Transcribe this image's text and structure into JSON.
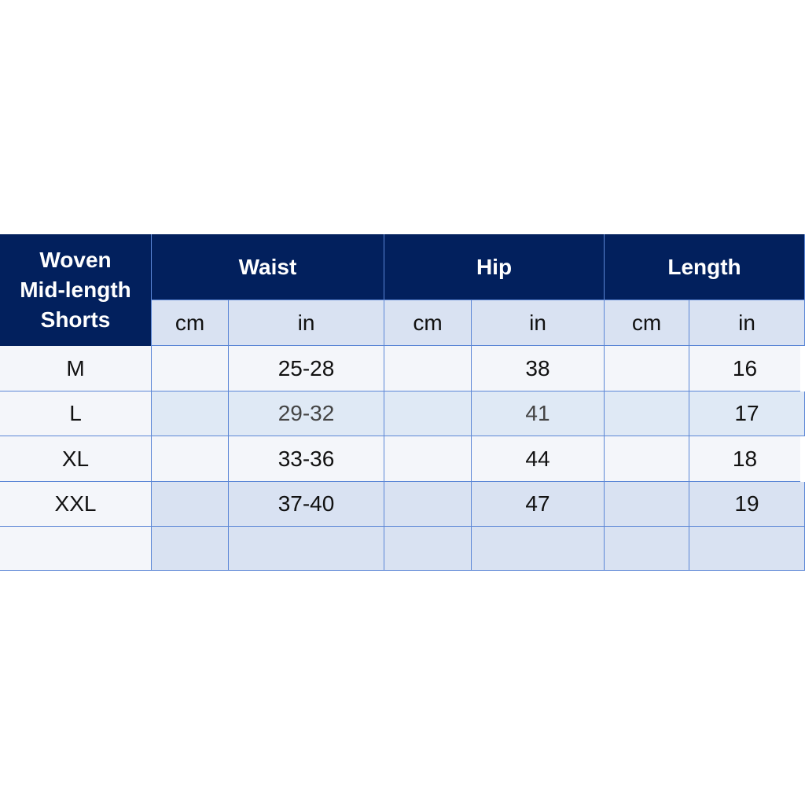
{
  "title": "Woven\nMid-length\nShorts",
  "groups": [
    "Waist",
    "Hip",
    "Length"
  ],
  "units": [
    "cm",
    "in",
    "cm",
    "in",
    "cm",
    "in"
  ],
  "rows": [
    {
      "size": "M",
      "values": [
        "",
        "25-28",
        "",
        "38",
        "",
        "16"
      ]
    },
    {
      "size": "L",
      "values": [
        "",
        "29-32",
        "",
        "41",
        "",
        "17"
      ]
    },
    {
      "size": "XL",
      "values": [
        "",
        "33-36",
        "",
        "44",
        "",
        "18"
      ]
    },
    {
      "size": "XXL",
      "values": [
        "",
        "37-40",
        "",
        "47",
        "",
        "19"
      ]
    },
    {
      "size": "",
      "values": [
        "",
        "",
        "",
        "",
        "",
        ""
      ]
    }
  ],
  "colors": {
    "header": "#02205d",
    "grid": "#5b86d6",
    "unit_row": "#d9e2f2"
  }
}
